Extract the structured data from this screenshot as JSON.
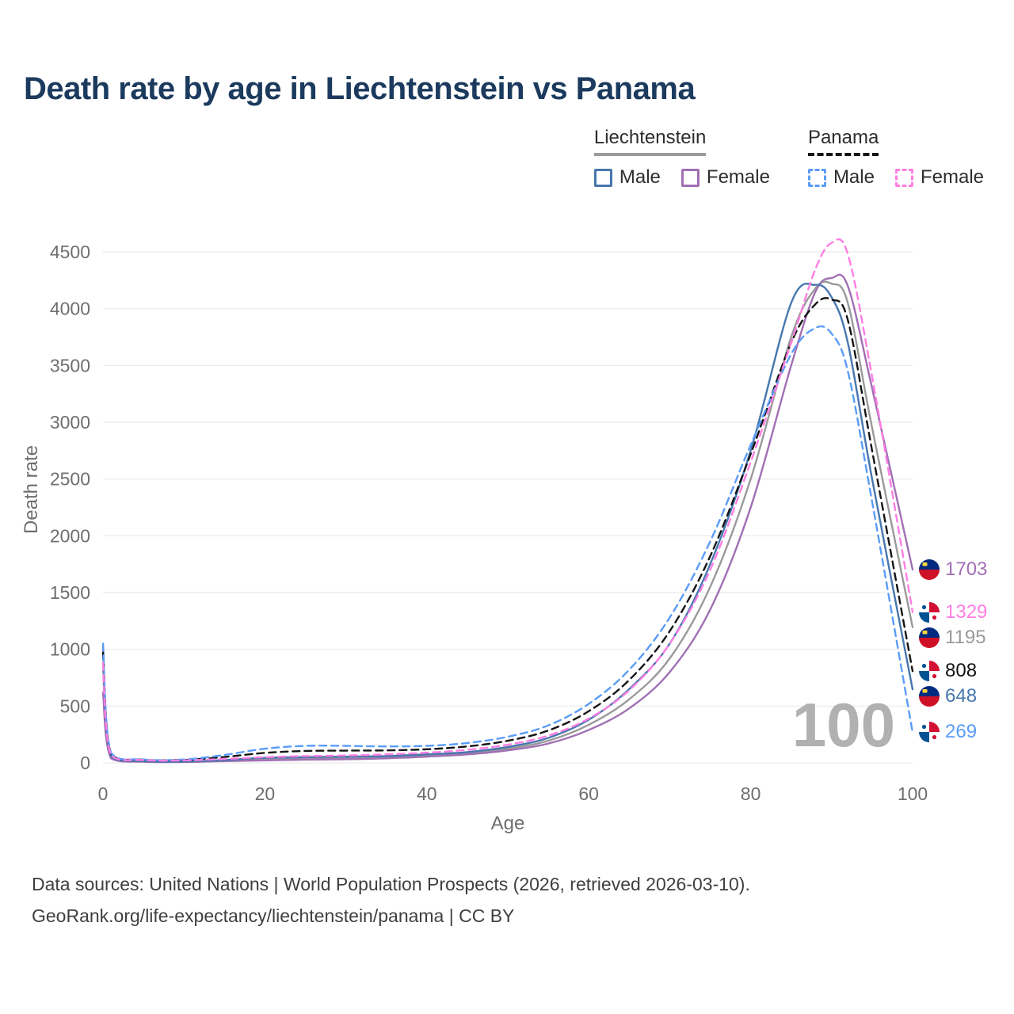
{
  "title": "Death rate by age in Liechtenstein vs Panama",
  "legend": {
    "liechtenstein": {
      "label": "Liechtenstein",
      "male": "Male",
      "female": "Female"
    },
    "panama": {
      "label": "Panama",
      "male": "Male",
      "female": "Female"
    }
  },
  "watermark": "100",
  "footer": {
    "line1": "Data sources: United Nations | World Population Prospects (2026, retrieved 2026-03-10).",
    "line2": "GeoRank.org/life-expectancy/liechtenstein/panama | CC BY"
  },
  "chart_data": {
    "type": "line",
    "title": "Death rate by age in Liechtenstein vs Panama",
    "xlabel": "Age",
    "ylabel": "Death rate",
    "xlim": [
      0,
      100
    ],
    "ylim": [
      0,
      4500
    ],
    "x_ticks": [
      0,
      20,
      40,
      60,
      80,
      100
    ],
    "y_ticks": [
      0,
      500,
      1000,
      1500,
      2000,
      2500,
      3000,
      3500,
      4000,
      4500
    ],
    "grid": "horizontal",
    "legend_position": "top-right",
    "x": [
      0,
      1,
      5,
      10,
      15,
      20,
      25,
      30,
      35,
      40,
      45,
      50,
      55,
      60,
      65,
      70,
      75,
      80,
      85,
      88,
      90,
      92,
      95,
      100
    ],
    "series": [
      {
        "id": "liechtenstein_both",
        "name": "Liechtenstein",
        "country": "liechtenstein",
        "color": "#9a9a9a",
        "dash": false,
        "values": [
          830,
          50,
          12,
          10,
          20,
          34,
          40,
          44,
          50,
          65,
          85,
          125,
          195,
          335,
          560,
          920,
          1550,
          2500,
          3750,
          4180,
          4220,
          4050,
          2950,
          1195
        ]
      },
      {
        "id": "liechtenstein_female",
        "name": "Liechtenstein Female",
        "country": "liechtenstein",
        "color": "#a16fb4",
        "dash": false,
        "values": [
          620,
          40,
          10,
          8,
          15,
          22,
          28,
          32,
          40,
          55,
          75,
          110,
          170,
          290,
          480,
          800,
          1350,
          2250,
          3500,
          4150,
          4270,
          4200,
          3300,
          1703
        ]
      },
      {
        "id": "liechtenstein_male",
        "name": "Liechtenstein Male",
        "country": "liechtenstein",
        "color": "#4677ae",
        "dash": false,
        "values": [
          1030,
          60,
          15,
          12,
          25,
          45,
          50,
          55,
          60,
          75,
          95,
          140,
          220,
          380,
          650,
          1050,
          1750,
          2750,
          4050,
          4210,
          4100,
          3700,
          2500,
          648
        ]
      },
      {
        "id": "panama_both",
        "name": "Panama",
        "country": "panama",
        "color": "#141414",
        "dash": true,
        "values": [
          970,
          80,
          28,
          26,
          52,
          88,
          105,
          108,
          110,
          120,
          145,
          195,
          285,
          455,
          730,
          1160,
          1820,
          2720,
          3700,
          4040,
          4080,
          3900,
          2750,
          808
        ]
      },
      {
        "id": "panama_male",
        "name": "Panama Male",
        "country": "panama",
        "color": "#5a9cf8",
        "dash": true,
        "values": [
          1050,
          90,
          30,
          30,
          70,
          125,
          150,
          150,
          145,
          150,
          175,
          230,
          330,
          520,
          820,
          1280,
          1950,
          2800,
          3600,
          3830,
          3780,
          3450,
          2300,
          269
        ]
      },
      {
        "id": "panama_female",
        "name": "Panama Female",
        "country": "panama",
        "color": "#ff7ee3",
        "dash": true,
        "values": [
          880,
          70,
          25,
          22,
          35,
          50,
          60,
          65,
          75,
          90,
          115,
          160,
          240,
          390,
          640,
          1050,
          1700,
          2650,
          3700,
          4350,
          4580,
          4480,
          3400,
          1329
        ]
      }
    ],
    "end_labels": [
      {
        "value": "1703",
        "series": "liechtenstein_female"
      },
      {
        "value": "1329",
        "series": "panama_female"
      },
      {
        "value": "1195",
        "series": "liechtenstein_both"
      },
      {
        "value": "808",
        "series": "panama_both"
      },
      {
        "value": "648",
        "series": "liechtenstein_male"
      },
      {
        "value": "269",
        "series": "panama_male"
      }
    ]
  }
}
